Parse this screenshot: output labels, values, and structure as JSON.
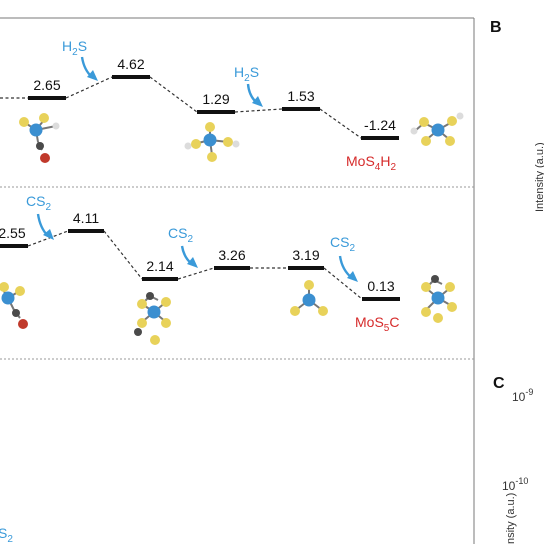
{
  "panel_labels": {
    "b": "B",
    "c": "C"
  },
  "colors": {
    "energy_level": "#111111",
    "connector": "#333333",
    "reagent": "#3a9ad9",
    "product": "#d62b2b",
    "divider": "#9a9a9a",
    "frame": "#7a7a7a",
    "mo_atom": "#3b8fd0",
    "s_atom": "#e8d25a",
    "o_atom": "#c0392b",
    "c_atom": "#4a4a4a",
    "h_atom": "#dcdcdc"
  },
  "row1": {
    "levels": [
      "2.65",
      "4.62",
      "1.29",
      "1.53",
      "-1.24"
    ],
    "reagent_1": {
      "base": "H",
      "sub": "2",
      "tail": "S"
    },
    "reagent_2": {
      "base": "H",
      "sub": "2",
      "tail": "S"
    },
    "product": {
      "base": "MoS",
      "sub1": "4",
      "mid": "H",
      "sub2": "2"
    }
  },
  "row2": {
    "levels": [
      "2.55",
      "4.11",
      "2.14",
      "3.26",
      "3.19",
      "0.13"
    ],
    "reagent_1": {
      "base": "CS",
      "sub": "2"
    },
    "reagent_2": {
      "base": "CS",
      "sub": "2"
    },
    "reagent_3": {
      "base": "CS",
      "sub": "2"
    },
    "product": {
      "base": "MoS",
      "sub1": "5",
      "tail": "C"
    }
  },
  "row3": {
    "reagent_partial": {
      "base": "S",
      "sub": "2"
    }
  },
  "panel_b": {
    "ylabel": "Intensity (a.u.)"
  },
  "panel_c": {
    "tick_top": {
      "base": "10",
      "exp": "-9"
    },
    "tick_second": {
      "base": "10",
      "exp": "-10"
    },
    "ylabel": "nsity (a.u.)"
  }
}
